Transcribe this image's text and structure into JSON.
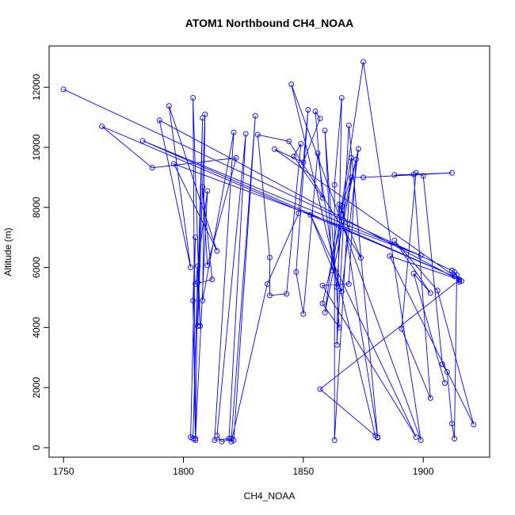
{
  "chart_data": {
    "type": "line",
    "title": "ATOM1 Northbound CH4_NOAA",
    "x_label": "CH4_NOAA",
    "y_label": "Altitude (m)",
    "xlim": [
      1744,
      1927.7
    ],
    "ylim": [
      -317,
      13377
    ],
    "xticks": [
      1750,
      1800,
      1850,
      1900
    ],
    "yticks": [
      0,
      2000,
      4000,
      6000,
      8000,
      10000,
      12000
    ],
    "marker": "open-circle",
    "series": [
      {
        "color": "#0000ff",
        "x": [
          1750,
          1912,
          1916,
          1915,
          1913,
          1914,
          1913,
          1912,
          1910,
          1908,
          1900,
          1897,
          1891,
          1903,
          1896,
          1888,
          1912,
          1875,
          1870,
          1866,
          1881,
          1881,
          1869,
          1864,
          1866,
          1863,
          1863,
          1870,
          1866,
          1864,
          1856,
          1850,
          1847,
          1852,
          1848,
          1835,
          1820,
          1821,
          1830,
          1820,
          1816,
          1814,
          1826,
          1819,
          1813,
          1821,
          1808,
          1809,
          1806,
          1808,
          1806,
          1807,
          1804,
          1805,
          1806,
          1804,
          1803,
          1805,
          1804,
          1805,
          1810,
          1805,
          1812,
          1808,
          1810,
          1822,
          1787,
          1766,
          1913,
          1783,
          1899,
          1796,
          1814,
          1794,
          1803,
          1790,
          1915,
          1857,
          1880,
          1845,
          1899,
          1875,
          1862,
          1859,
          1865,
          1858,
          1873,
          1866,
          1853,
          1897,
          1858,
          1869,
          1872,
          1859,
          1865,
          1874,
          1844,
          1831,
          1836,
          1836,
          1843,
          1849,
          1846,
          1858,
          1855,
          1857,
          1850,
          1838,
          1915,
          1886,
          1921,
          1906,
          1888,
          1903,
          1896,
          1909
        ],
        "values": [
          11930,
          5900,
          5550,
          5520,
          5850,
          5750,
          300,
          800,
          2520,
          2780,
          9050,
          9150,
          3950,
          1650,
          9100,
          9080,
          9150,
          9000,
          9000,
          8050,
          350,
          330,
          10730,
          3420,
          11650,
          8750,
          250,
          9650,
          7900,
          5350,
          9800,
          4450,
          5850,
          11250,
          7800,
          5450,
          200,
          250,
          11050,
          300,
          200,
          400,
          10450,
          300,
          250,
          10500,
          4900,
          11100,
          4050,
          10980,
          5500,
          4050,
          11650,
          300,
          6050,
          300,
          350,
          7000,
          4900,
          250,
          8550,
          5450,
          5600,
          8680,
          6070,
          9650,
          9320,
          10700,
          5700,
          10220,
          6400,
          9450,
          6550,
          11380,
          6000,
          10900,
          5580,
          1950,
          400,
          12100,
          250,
          12850,
          5900,
          10560,
          4000,
          4800,
          9950,
          5200,
          7750,
          350,
          5400,
          5450,
          9600,
          4500,
          8100,
          6320,
          10200,
          10420,
          6330,
          5070,
          5120,
          10120,
          9700,
          8320,
          11200,
          10960,
          9500,
          9940,
          5600,
          6380,
          770,
          5230,
          6900,
          5150,
          5800,
          2150
        ]
      }
    ]
  }
}
